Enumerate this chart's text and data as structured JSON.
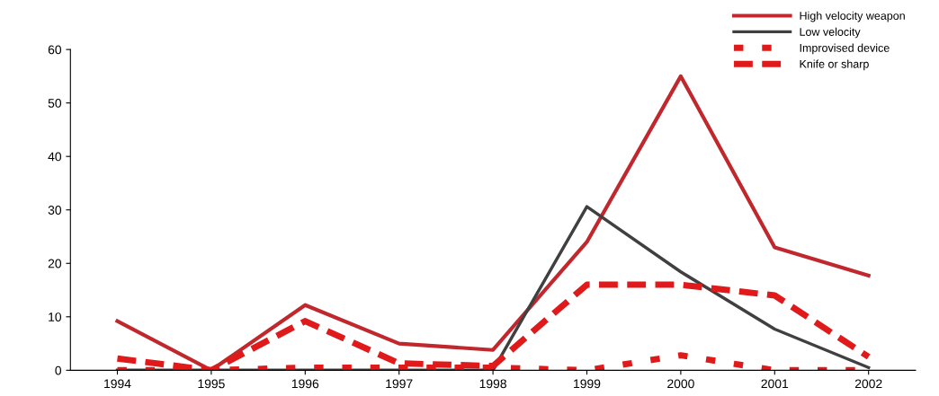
{
  "chart_data": {
    "type": "line",
    "categories": [
      "1994",
      "1995",
      "1996",
      "1997",
      "1998",
      "1999",
      "2000",
      "2001",
      "2002"
    ],
    "series": [
      {
        "name": "High velocity weapon",
        "color": "#c0282d",
        "line_style": "solid",
        "values": [
          9.2,
          0,
          12.2,
          5,
          3.8,
          24,
          55,
          23,
          17.7
        ]
      },
      {
        "name": "Low velocity",
        "color": "#404040",
        "line_style": "solid",
        "values": [
          0,
          0,
          0,
          0,
          0,
          30.6,
          18.4,
          7.7,
          0.5
        ]
      },
      {
        "name": "Improvised device",
        "color": "#e01a1a",
        "line_style": "dotted",
        "values": [
          0,
          0,
          0.5,
          0.5,
          0.5,
          0,
          2.8,
          0,
          0
        ]
      },
      {
        "name": "Knife or sharp",
        "color": "#e01a1a",
        "line_style": "dashed",
        "values": [
          2.2,
          0,
          9.2,
          1.3,
          0.8,
          16,
          16,
          14,
          2.5
        ]
      }
    ],
    "ylim": [
      0,
      60
    ],
    "yticks": [
      0,
      10,
      20,
      30,
      40,
      50,
      60
    ],
    "grid": false,
    "legend": "top right"
  }
}
